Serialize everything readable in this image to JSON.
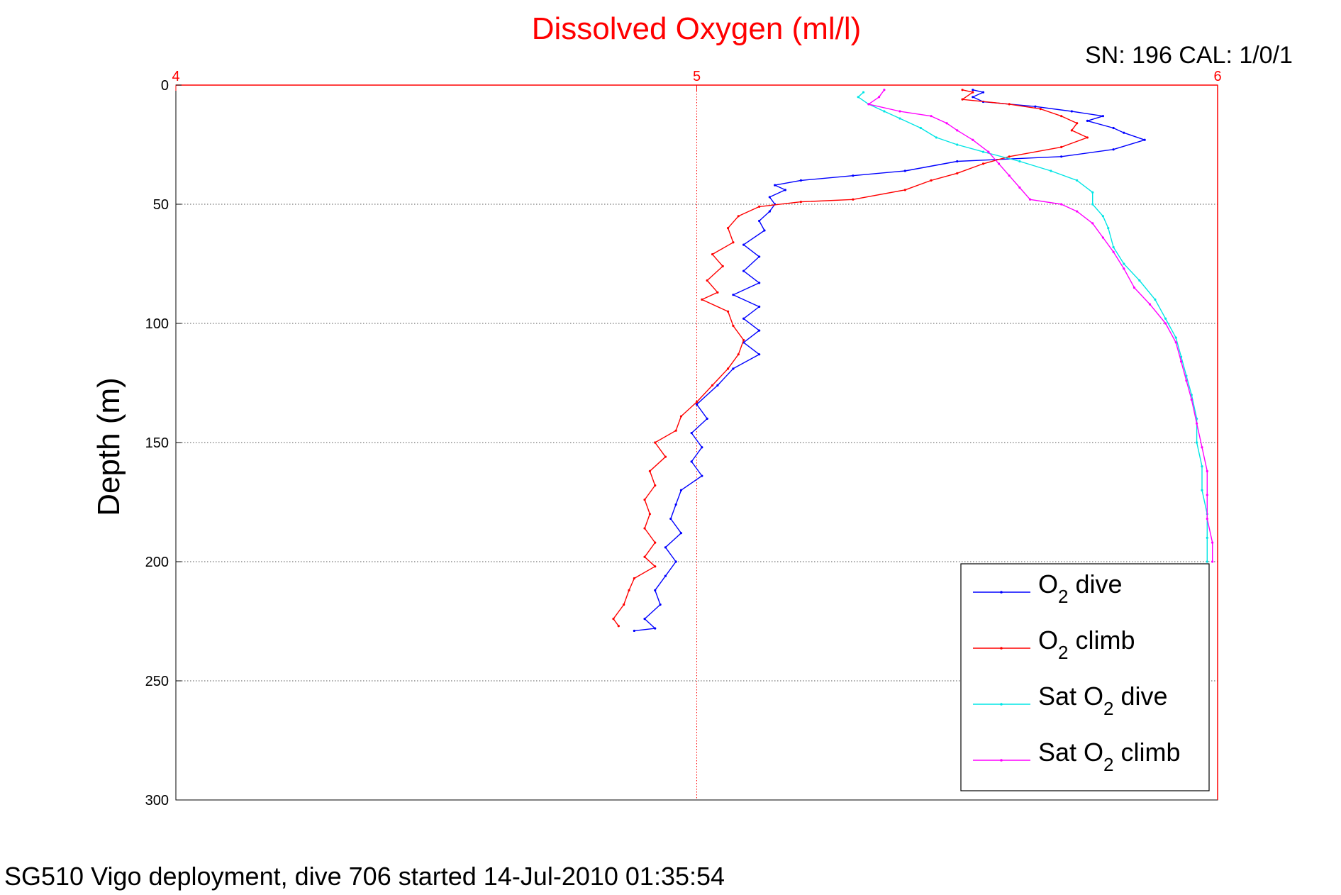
{
  "chart_data": {
    "type": "line",
    "title": "Dissolved Oxygen (ml/l)",
    "ylabel": "Depth (m)",
    "xlabel": "",
    "xlim": [
      4,
      6
    ],
    "ylim": [
      0,
      300
    ],
    "y_reversed": true,
    "x_axis_position": "top",
    "x_ticks": [
      "4",
      "5",
      "6"
    ],
    "y_ticks": [
      "0",
      "50",
      "100",
      "150",
      "200",
      "250",
      "300"
    ],
    "grid": true,
    "legend_placement": "bottom-right",
    "annotation_top_right": "SN: 196  CAL: 1/0/1",
    "footer": "SG510 Vigo deployment, dive 706 started 14-Jul-2010 01:35:54",
    "series": [
      {
        "name": "O2 dive",
        "label_main": "O",
        "label_sub": "2",
        "label_rest": " dive",
        "color": "#0000ff",
        "points": [
          [
            5.53,
            2
          ],
          [
            5.55,
            3
          ],
          [
            5.53,
            5
          ],
          [
            5.55,
            7
          ],
          [
            5.65,
            9
          ],
          [
            5.72,
            11
          ],
          [
            5.78,
            13
          ],
          [
            5.75,
            15
          ],
          [
            5.8,
            18
          ],
          [
            5.82,
            20
          ],
          [
            5.86,
            23
          ],
          [
            5.8,
            27
          ],
          [
            5.7,
            30
          ],
          [
            5.5,
            32
          ],
          [
            5.4,
            36
          ],
          [
            5.3,
            38
          ],
          [
            5.2,
            40
          ],
          [
            5.15,
            42
          ],
          [
            5.17,
            44
          ],
          [
            5.14,
            47
          ],
          [
            5.15,
            50
          ],
          [
            5.14,
            53
          ],
          [
            5.12,
            57
          ],
          [
            5.13,
            61
          ],
          [
            5.09,
            67
          ],
          [
            5.12,
            72
          ],
          [
            5.09,
            78
          ],
          [
            5.12,
            83
          ],
          [
            5.07,
            88
          ],
          [
            5.12,
            93
          ],
          [
            5.09,
            98
          ],
          [
            5.12,
            103
          ],
          [
            5.09,
            108
          ],
          [
            5.12,
            113
          ],
          [
            5.07,
            119
          ],
          [
            5.04,
            126
          ],
          [
            5.0,
            134
          ],
          [
            5.02,
            140
          ],
          [
            4.99,
            146
          ],
          [
            5.01,
            152
          ],
          [
            4.99,
            158
          ],
          [
            5.01,
            164
          ],
          [
            4.97,
            170
          ],
          [
            4.96,
            176
          ],
          [
            4.95,
            182
          ],
          [
            4.97,
            188
          ],
          [
            4.94,
            194
          ],
          [
            4.96,
            200
          ],
          [
            4.94,
            206
          ],
          [
            4.92,
            212
          ],
          [
            4.93,
            218
          ],
          [
            4.9,
            224
          ],
          [
            4.92,
            228
          ],
          [
            4.88,
            229
          ]
        ]
      },
      {
        "name": "O2 climb",
        "label_main": "O",
        "label_sub": "2",
        "label_rest": " climb",
        "color": "#ff0000",
        "points": [
          [
            5.51,
            2
          ],
          [
            5.53,
            3
          ],
          [
            5.51,
            6
          ],
          [
            5.6,
            8
          ],
          [
            5.66,
            10
          ],
          [
            5.7,
            13
          ],
          [
            5.73,
            16
          ],
          [
            5.72,
            19
          ],
          [
            5.75,
            22
          ],
          [
            5.7,
            26
          ],
          [
            5.6,
            30
          ],
          [
            5.55,
            33
          ],
          [
            5.5,
            37
          ],
          [
            5.45,
            40
          ],
          [
            5.4,
            44
          ],
          [
            5.3,
            48
          ],
          [
            5.2,
            49
          ],
          [
            5.12,
            51
          ],
          [
            5.08,
            55
          ],
          [
            5.06,
            60
          ],
          [
            5.07,
            66
          ],
          [
            5.03,
            71
          ],
          [
            5.05,
            76
          ],
          [
            5.02,
            82
          ],
          [
            5.04,
            87
          ],
          [
            5.01,
            90
          ],
          [
            5.06,
            95
          ],
          [
            5.07,
            101
          ],
          [
            5.09,
            107
          ],
          [
            5.08,
            113
          ],
          [
            5.06,
            119
          ],
          [
            5.03,
            126
          ],
          [
            5.0,
            133
          ],
          [
            4.97,
            139
          ],
          [
            4.96,
            145
          ],
          [
            4.92,
            150
          ],
          [
            4.94,
            156
          ],
          [
            4.91,
            162
          ],
          [
            4.92,
            168
          ],
          [
            4.9,
            174
          ],
          [
            4.91,
            180
          ],
          [
            4.9,
            186
          ],
          [
            4.92,
            192
          ],
          [
            4.9,
            198
          ],
          [
            4.92,
            202
          ],
          [
            4.88,
            207
          ],
          [
            4.87,
            212
          ],
          [
            4.86,
            218
          ],
          [
            4.84,
            224
          ],
          [
            4.85,
            227
          ]
        ]
      },
      {
        "name": "Sat O2 dive",
        "label_main": "Sat O",
        "label_sub": "2",
        "label_rest": " dive",
        "color": "#00e5e5",
        "points": [
          [
            5.32,
            3
          ],
          [
            5.31,
            5
          ],
          [
            5.33,
            8
          ],
          [
            5.36,
            11
          ],
          [
            5.39,
            14
          ],
          [
            5.43,
            18
          ],
          [
            5.46,
            22
          ],
          [
            5.5,
            25
          ],
          [
            5.55,
            28
          ],
          [
            5.62,
            32
          ],
          [
            5.68,
            36
          ],
          [
            5.73,
            40
          ],
          [
            5.76,
            45
          ],
          [
            5.76,
            50
          ],
          [
            5.78,
            55
          ],
          [
            5.79,
            60
          ],
          [
            5.8,
            68
          ],
          [
            5.82,
            75
          ],
          [
            5.85,
            82
          ],
          [
            5.88,
            90
          ],
          [
            5.9,
            98
          ],
          [
            5.92,
            106
          ],
          [
            5.93,
            114
          ],
          [
            5.94,
            122
          ],
          [
            5.95,
            130
          ],
          [
            5.96,
            140
          ],
          [
            5.96,
            150
          ],
          [
            5.97,
            160
          ],
          [
            5.97,
            170
          ],
          [
            5.98,
            180
          ],
          [
            5.98,
            190
          ],
          [
            5.98,
            200
          ]
        ]
      },
      {
        "name": "Sat O2 climb",
        "label_main": "Sat O",
        "label_sub": "2",
        "label_rest": " climb",
        "color": "#ff00ff",
        "points": [
          [
            5.36,
            2
          ],
          [
            5.35,
            5
          ],
          [
            5.33,
            8
          ],
          [
            5.39,
            11
          ],
          [
            5.45,
            13
          ],
          [
            5.48,
            16
          ],
          [
            5.5,
            19
          ],
          [
            5.53,
            23
          ],
          [
            5.56,
            28
          ],
          [
            5.58,
            33
          ],
          [
            5.6,
            38
          ],
          [
            5.62,
            43
          ],
          [
            5.64,
            48
          ],
          [
            5.7,
            50
          ],
          [
            5.73,
            53
          ],
          [
            5.76,
            58
          ],
          [
            5.78,
            64
          ],
          [
            5.8,
            70
          ],
          [
            5.82,
            77
          ],
          [
            5.84,
            85
          ],
          [
            5.87,
            92
          ],
          [
            5.9,
            100
          ],
          [
            5.92,
            108
          ],
          [
            5.93,
            116
          ],
          [
            5.94,
            124
          ],
          [
            5.95,
            132
          ],
          [
            5.96,
            142
          ],
          [
            5.97,
            152
          ],
          [
            5.98,
            162
          ],
          [
            5.98,
            172
          ],
          [
            5.98,
            182
          ],
          [
            5.99,
            192
          ],
          [
            5.99,
            200
          ]
        ]
      }
    ]
  }
}
